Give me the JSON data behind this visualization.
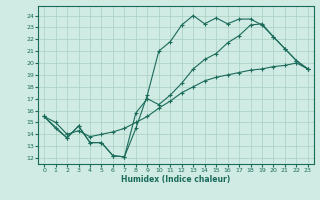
{
  "xlabel": "Humidex (Indice chaleur)",
  "bg_color": "#d0ebe3",
  "grid_color": "#a8cfc2",
  "line_color": "#1a6b5a",
  "xlim": [
    -0.5,
    23.5
  ],
  "ylim": [
    11.5,
    24.8
  ],
  "yticks": [
    12,
    13,
    14,
    15,
    16,
    17,
    18,
    19,
    20,
    21,
    22,
    23,
    24
  ],
  "xticks": [
    0,
    1,
    2,
    3,
    4,
    5,
    6,
    7,
    8,
    9,
    10,
    11,
    12,
    13,
    14,
    15,
    16,
    17,
    18,
    19,
    20,
    21,
    22,
    23
  ],
  "line1_x": [
    0,
    1,
    2,
    3,
    4,
    5,
    6,
    7,
    8,
    9,
    10,
    11,
    12,
    13,
    14,
    15,
    16,
    17,
    18,
    19,
    20,
    21,
    22,
    23
  ],
  "line1_y": [
    15.5,
    14.5,
    13.7,
    14.7,
    13.3,
    13.3,
    12.2,
    12.1,
    14.5,
    17.3,
    21.0,
    21.8,
    23.2,
    24.0,
    23.3,
    23.8,
    23.3,
    23.7,
    23.7,
    23.2,
    22.2,
    21.2,
    20.2,
    19.5
  ],
  "line2_x": [
    0,
    2,
    3,
    4,
    5,
    6,
    7,
    8,
    9,
    10,
    11,
    12,
    13,
    14,
    15,
    16,
    17,
    18,
    19,
    20,
    21,
    22,
    23
  ],
  "line2_y": [
    15.5,
    13.7,
    14.7,
    13.3,
    13.3,
    12.2,
    12.1,
    15.8,
    17.0,
    16.5,
    17.3,
    18.3,
    19.5,
    20.3,
    20.8,
    21.7,
    22.3,
    23.2,
    23.3,
    22.2,
    21.2,
    20.2,
    19.5
  ],
  "line3_x": [
    0,
    1,
    2,
    3,
    4,
    5,
    6,
    7,
    8,
    9,
    10,
    11,
    12,
    13,
    14,
    15,
    16,
    17,
    18,
    19,
    20,
    21,
    22,
    23
  ],
  "line3_y": [
    15.5,
    15.0,
    14.0,
    14.3,
    13.8,
    14.0,
    14.2,
    14.5,
    15.0,
    15.5,
    16.2,
    16.8,
    17.5,
    18.0,
    18.5,
    18.8,
    19.0,
    19.2,
    19.4,
    19.5,
    19.7,
    19.8,
    20.0,
    19.5
  ]
}
